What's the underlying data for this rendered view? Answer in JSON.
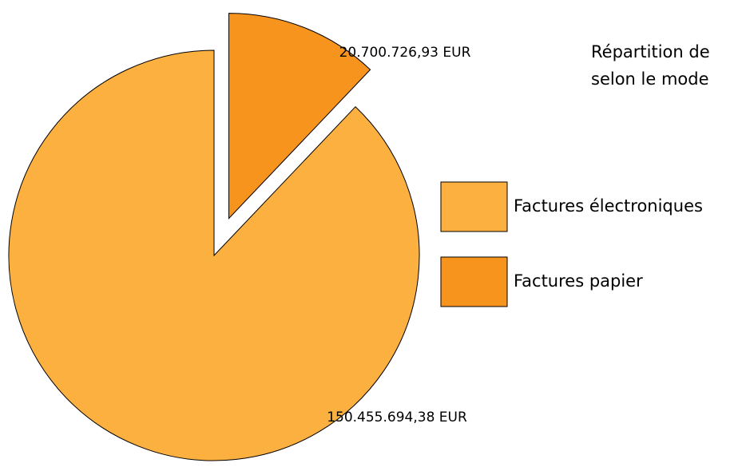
{
  "chart_data": {
    "type": "pie",
    "title": [
      "Répartition de",
      "selon le mode"
    ],
    "categories": [
      "Factures électroniques",
      "Factures papier"
    ],
    "values": [
      150455694.38,
      20700726.93
    ],
    "value_labels": [
      "150.455.694,38 EUR",
      "20.700.726,93 EUR"
    ],
    "colors": [
      "#fbb040",
      "#f7941d"
    ],
    "legend": "right"
  }
}
